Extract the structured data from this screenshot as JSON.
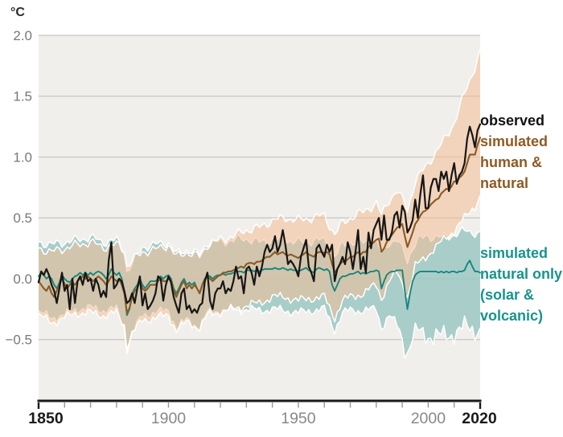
{
  "unit_label": "°C",
  "colors": {
    "observed_line": "#161616",
    "human_natural_line": "#8a5a25",
    "natural_only_line": "#17867c",
    "band_human_natural": "#f4bd95",
    "band_natural_only": "#98c7c2",
    "plot_bg": "#f0efec",
    "gridline": "#c7c5c2",
    "axis": "#1a1a1a",
    "tick_minor": "#9a9896",
    "y_label_gray": "#7a7875",
    "x_label_gray": "#8a8886",
    "legend_observed": "#121212",
    "legend_brown": "#8f5a22",
    "legend_teal": "#17948a"
  },
  "legend": {
    "observed": {
      "label": "observed",
      "color": "#121212"
    },
    "human_natural": {
      "label": "simulated\nhuman &\nnatural",
      "color": "#8f5a22"
    },
    "natural_only": {
      "label": "simulated\nnatural only\n(solar &\nvolcanic)",
      "color": "#17948a"
    }
  },
  "chart_data": {
    "type": "line",
    "ylabel": "°C",
    "x_start": 1850,
    "x_end": 2020,
    "x_step": 1,
    "xlim": [
      1850,
      2020
    ],
    "ylim": [
      -1.0,
      2.0
    ],
    "grid": "horizontal",
    "legend_position": "right",
    "y_gridlines": [
      2,
      1.5,
      1,
      0.5,
      0,
      -0.5
    ],
    "y_ticks": [
      {
        "value": 2,
        "label": "2.0"
      },
      {
        "value": 1.5,
        "label": "1.5"
      },
      {
        "value": 1,
        "label": "1.0"
      },
      {
        "value": 0.5,
        "label": "0.5"
      },
      {
        "value": 0,
        "label": "0.0"
      },
      {
        "value": -0.5,
        "label": "−0.5"
      }
    ],
    "x_ticks": [
      {
        "year": 1850,
        "label": "1850",
        "major": true
      },
      {
        "year": 1860,
        "label": "",
        "major": false
      },
      {
        "year": 1870,
        "label": "",
        "major": false
      },
      {
        "year": 1880,
        "label": "",
        "major": false
      },
      {
        "year": 1890,
        "label": "",
        "major": false
      },
      {
        "year": 1900,
        "label": "1900",
        "major": false
      },
      {
        "year": 1910,
        "label": "",
        "major": false
      },
      {
        "year": 1920,
        "label": "",
        "major": false
      },
      {
        "year": 1930,
        "label": "",
        "major": false
      },
      {
        "year": 1940,
        "label": "",
        "major": false
      },
      {
        "year": 1950,
        "label": "1950",
        "major": false
      },
      {
        "year": 1960,
        "label": "",
        "major": false
      },
      {
        "year": 1970,
        "label": "",
        "major": false
      },
      {
        "year": 1980,
        "label": "",
        "major": false
      },
      {
        "year": 1990,
        "label": "",
        "major": false
      },
      {
        "year": 2000,
        "label": "2000",
        "major": false
      },
      {
        "year": 2010,
        "label": "",
        "major": false
      },
      {
        "year": 2020,
        "label": "2020",
        "major": true
      }
    ],
    "series": [
      {
        "name": "observed",
        "color": "#161616",
        "values": [
          -0.03,
          0.06,
          0.03,
          0.08,
          0.03,
          -0.05,
          -0.1,
          -0.2,
          -0.08,
          0.05,
          -0.1,
          -0.05,
          -0.25,
          0.0,
          -0.2,
          -0.02,
          0.02,
          -0.05,
          0.05,
          -0.02,
          0.0,
          -0.1,
          0.0,
          -0.05,
          -0.15,
          -0.1,
          -0.15,
          0.15,
          0.3,
          -0.08,
          -0.05,
          0.0,
          -0.02,
          -0.1,
          -0.2,
          -0.18,
          -0.12,
          -0.2,
          -0.08,
          0.02,
          -0.22,
          -0.12,
          -0.25,
          -0.22,
          -0.18,
          -0.12,
          0.02,
          0.0,
          -0.18,
          -0.05,
          0.02,
          -0.03,
          -0.15,
          -0.22,
          -0.28,
          -0.12,
          -0.08,
          -0.25,
          -0.22,
          -0.28,
          -0.25,
          -0.28,
          -0.22,
          -0.2,
          -0.02,
          0.05,
          -0.18,
          -0.25,
          -0.12,
          -0.08,
          -0.08,
          -0.02,
          -0.12,
          -0.08,
          -0.1,
          -0.02,
          0.1,
          0.0,
          0.02,
          -0.12,
          0.08,
          0.1,
          0.05,
          -0.05,
          0.1,
          0.02,
          0.1,
          0.22,
          0.28,
          0.22,
          0.25,
          0.35,
          0.22,
          0.28,
          0.4,
          0.28,
          0.12,
          0.15,
          0.12,
          0.08,
          0.02,
          0.18,
          0.25,
          0.32,
          0.1,
          0.05,
          -0.02,
          0.25,
          0.28,
          0.22,
          0.18,
          0.28,
          0.22,
          0.28,
          -0.02,
          0.08,
          0.12,
          0.18,
          0.12,
          0.3,
          0.22,
          0.08,
          0.22,
          0.4,
          0.08,
          0.18,
          0.05,
          0.38,
          0.25,
          0.4,
          0.45,
          0.5,
          0.32,
          0.52,
          0.32,
          0.32,
          0.38,
          0.52,
          0.55,
          0.42,
          0.6,
          0.55,
          0.38,
          0.42,
          0.48,
          0.65,
          0.5,
          0.7,
          0.85,
          0.58,
          0.58,
          0.75,
          0.82,
          0.82,
          0.72,
          0.88,
          0.82,
          0.88,
          0.72,
          0.85,
          0.95,
          0.78,
          0.85,
          0.88,
          0.95,
          1.15,
          1.25,
          1.18,
          1.08,
          1.22,
          1.27
        ]
      },
      {
        "name": "simulated human & natural",
        "color": "#8a5a25",
        "values": [
          -0.02,
          -0.05,
          -0.08,
          -0.1,
          -0.06,
          -0.12,
          -0.15,
          -0.1,
          -0.05,
          0.0,
          -0.04,
          -0.08,
          -0.05,
          -0.03,
          -0.05,
          -0.02,
          0.0,
          0.02,
          0.0,
          0.02,
          0.0,
          -0.02,
          0.0,
          0.02,
          0.0,
          -0.02,
          -0.05,
          -0.02,
          0.02,
          0.0,
          -0.02,
          0.0,
          -0.05,
          -0.12,
          -0.28,
          -0.24,
          -0.15,
          -0.1,
          -0.08,
          -0.02,
          -0.08,
          -0.1,
          -0.08,
          -0.05,
          -0.05,
          -0.05,
          -0.02,
          0.0,
          -0.02,
          -0.02,
          0.0,
          -0.02,
          -0.1,
          -0.15,
          -0.1,
          -0.05,
          -0.02,
          -0.08,
          -0.05,
          -0.08,
          -0.05,
          -0.08,
          -0.12,
          -0.05,
          0.0,
          0.02,
          0.0,
          -0.02,
          0.0,
          0.02,
          0.03,
          0.05,
          0.05,
          0.06,
          0.06,
          0.07,
          0.08,
          0.09,
          0.1,
          0.09,
          0.12,
          0.13,
          0.13,
          0.12,
          0.14,
          0.14,
          0.15,
          0.17,
          0.18,
          0.18,
          0.2,
          0.22,
          0.2,
          0.21,
          0.22,
          0.2,
          0.19,
          0.2,
          0.19,
          0.18,
          0.17,
          0.19,
          0.2,
          0.22,
          0.2,
          0.19,
          0.18,
          0.21,
          0.22,
          0.22,
          0.21,
          0.22,
          0.2,
          0.12,
          0.05,
          0.08,
          0.12,
          0.14,
          0.14,
          0.16,
          0.18,
          0.18,
          0.2,
          0.22,
          0.2,
          0.22,
          0.22,
          0.26,
          0.28,
          0.3,
          0.32,
          0.33,
          0.22,
          0.25,
          0.3,
          0.33,
          0.36,
          0.39,
          0.42,
          0.43,
          0.45,
          0.35,
          0.26,
          0.32,
          0.38,
          0.45,
          0.48,
          0.52,
          0.55,
          0.56,
          0.58,
          0.61,
          0.63,
          0.65,
          0.66,
          0.7,
          0.72,
          0.74,
          0.73,
          0.76,
          0.8,
          0.8,
          0.83,
          0.85,
          0.88,
          0.95,
          1.02,
          1.02,
          1.02,
          1.1,
          1.16
        ]
      },
      {
        "name": "simulated natural only (solar & volcanic)",
        "color": "#17867c",
        "values": [
          0.02,
          0.05,
          0.03,
          0.0,
          0.02,
          0.0,
          -0.05,
          -0.08,
          -0.03,
          0.03,
          0.0,
          -0.02,
          -0.03,
          0.0,
          0.02,
          0.03,
          0.05,
          0.03,
          0.05,
          0.03,
          0.05,
          0.03,
          0.05,
          0.06,
          0.05,
          0.03,
          0.0,
          0.03,
          0.08,
          0.05,
          0.03,
          0.05,
          0.0,
          -0.1,
          -0.3,
          -0.25,
          -0.12,
          -0.08,
          -0.05,
          0.0,
          -0.05,
          -0.08,
          -0.05,
          -0.02,
          -0.02,
          -0.02,
          0.0,
          0.02,
          0.0,
          0.02,
          0.03,
          0.0,
          -0.08,
          -0.12,
          -0.08,
          -0.03,
          0.0,
          -0.05,
          -0.03,
          -0.05,
          -0.03,
          -0.08,
          -0.12,
          -0.05,
          0.0,
          0.03,
          0.02,
          0.0,
          0.02,
          0.03,
          0.03,
          0.04,
          0.03,
          0.04,
          0.04,
          0.05,
          0.06,
          0.06,
          0.06,
          0.05,
          0.07,
          0.07,
          0.07,
          0.06,
          0.07,
          0.06,
          0.07,
          0.08,
          0.08,
          0.08,
          0.08,
          0.09,
          0.08,
          0.08,
          0.09,
          0.08,
          0.07,
          0.08,
          0.07,
          0.07,
          0.06,
          0.07,
          0.08,
          0.09,
          0.07,
          0.06,
          0.05,
          0.08,
          0.09,
          0.08,
          0.07,
          0.08,
          0.06,
          -0.05,
          -0.1,
          -0.05,
          0.0,
          0.02,
          0.02,
          0.03,
          0.04,
          0.04,
          0.05,
          0.06,
          0.04,
          0.05,
          0.04,
          0.05,
          0.06,
          0.06,
          0.07,
          0.06,
          -0.08,
          -0.02,
          0.03,
          0.05,
          0.06,
          0.06,
          0.07,
          0.07,
          0.07,
          -0.1,
          -0.25,
          -0.12,
          -0.02,
          0.03,
          0.05,
          0.06,
          0.06,
          0.06,
          0.06,
          0.06,
          0.06,
          0.06,
          0.05,
          0.06,
          0.05,
          0.06,
          0.05,
          0.06,
          0.06,
          0.05,
          0.06,
          0.06,
          0.07,
          0.12,
          0.15,
          0.1,
          0.06,
          0.06,
          0.05
        ]
      }
    ],
    "bands": {
      "human_natural": {
        "name": "simulated human & natural uncertainty range",
        "keypoints": [
          [
            1850,
            -0.3,
            0.25
          ],
          [
            1855,
            -0.36,
            0.22
          ],
          [
            1860,
            -0.32,
            0.25
          ],
          [
            1865,
            -0.28,
            0.28
          ],
          [
            1870,
            -0.28,
            0.3
          ],
          [
            1875,
            -0.3,
            0.26
          ],
          [
            1880,
            -0.28,
            0.28
          ],
          [
            1883,
            -0.38,
            0.24
          ],
          [
            1884,
            -0.55,
            0.1
          ],
          [
            1886,
            -0.45,
            0.15
          ],
          [
            1890,
            -0.34,
            0.22
          ],
          [
            1895,
            -0.32,
            0.24
          ],
          [
            1900,
            -0.3,
            0.28
          ],
          [
            1903,
            -0.42,
            0.18
          ],
          [
            1907,
            -0.36,
            0.22
          ],
          [
            1912,
            -0.4,
            0.18
          ],
          [
            1915,
            -0.3,
            0.28
          ],
          [
            1920,
            -0.27,
            0.32
          ],
          [
            1925,
            -0.25,
            0.35
          ],
          [
            1930,
            -0.22,
            0.4
          ],
          [
            1935,
            -0.2,
            0.42
          ],
          [
            1940,
            -0.15,
            0.48
          ],
          [
            1945,
            -0.15,
            0.5
          ],
          [
            1950,
            -0.18,
            0.48
          ],
          [
            1955,
            -0.16,
            0.5
          ],
          [
            1960,
            -0.15,
            0.52
          ],
          [
            1963,
            -0.28,
            0.4
          ],
          [
            1964,
            -0.32,
            0.36
          ],
          [
            1967,
            -0.18,
            0.46
          ],
          [
            1970,
            -0.15,
            0.5
          ],
          [
            1975,
            -0.12,
            0.55
          ],
          [
            1980,
            -0.05,
            0.62
          ],
          [
            1982,
            -0.16,
            0.52
          ],
          [
            1985,
            -0.02,
            0.65
          ],
          [
            1988,
            0.05,
            0.72
          ],
          [
            1991,
            -0.08,
            0.62
          ],
          [
            1992,
            -0.15,
            0.56
          ],
          [
            1995,
            0.1,
            0.8
          ],
          [
            2000,
            0.2,
            0.95
          ],
          [
            2005,
            0.3,
            1.1
          ],
          [
            2010,
            0.4,
            1.28
          ],
          [
            2015,
            0.52,
            1.58
          ],
          [
            2018,
            0.6,
            1.74
          ],
          [
            2020,
            0.68,
            1.86
          ]
        ]
      },
      "natural_only": {
        "name": "simulated natural only uncertainty range",
        "keypoints": [
          [
            1850,
            -0.28,
            0.3
          ],
          [
            1855,
            -0.32,
            0.28
          ],
          [
            1860,
            -0.3,
            0.3
          ],
          [
            1865,
            -0.25,
            0.32
          ],
          [
            1870,
            -0.24,
            0.34
          ],
          [
            1875,
            -0.26,
            0.3
          ],
          [
            1880,
            -0.25,
            0.32
          ],
          [
            1883,
            -0.4,
            0.22
          ],
          [
            1884,
            -0.58,
            0.06
          ],
          [
            1886,
            -0.45,
            0.12
          ],
          [
            1890,
            -0.3,
            0.26
          ],
          [
            1895,
            -0.28,
            0.28
          ],
          [
            1900,
            -0.26,
            0.3
          ],
          [
            1903,
            -0.4,
            0.2
          ],
          [
            1907,
            -0.34,
            0.24
          ],
          [
            1912,
            -0.4,
            0.2
          ],
          [
            1915,
            -0.28,
            0.3
          ],
          [
            1920,
            -0.26,
            0.3
          ],
          [
            1925,
            -0.26,
            0.32
          ],
          [
            1930,
            -0.25,
            0.33
          ],
          [
            1935,
            -0.26,
            0.3
          ],
          [
            1940,
            -0.25,
            0.32
          ],
          [
            1945,
            -0.26,
            0.32
          ],
          [
            1950,
            -0.28,
            0.3
          ],
          [
            1955,
            -0.26,
            0.31
          ],
          [
            1960,
            -0.25,
            0.32
          ],
          [
            1963,
            -0.38,
            0.22
          ],
          [
            1964,
            -0.42,
            0.18
          ],
          [
            1967,
            -0.28,
            0.28
          ],
          [
            1970,
            -0.26,
            0.3
          ],
          [
            1975,
            -0.26,
            0.3
          ],
          [
            1980,
            -0.25,
            0.32
          ],
          [
            1982,
            -0.4,
            0.2
          ],
          [
            1985,
            -0.3,
            0.3
          ],
          [
            1988,
            -0.38,
            0.32
          ],
          [
            1991,
            -0.55,
            0.2
          ],
          [
            1992,
            -0.6,
            0.14
          ],
          [
            1994,
            -0.48,
            0.26
          ],
          [
            1996,
            -0.44,
            0.32
          ],
          [
            2000,
            -0.46,
            0.35
          ],
          [
            2005,
            -0.48,
            0.34
          ],
          [
            2010,
            -0.44,
            0.36
          ],
          [
            2015,
            -0.4,
            0.4
          ],
          [
            2020,
            -0.42,
            0.36
          ]
        ]
      }
    }
  }
}
